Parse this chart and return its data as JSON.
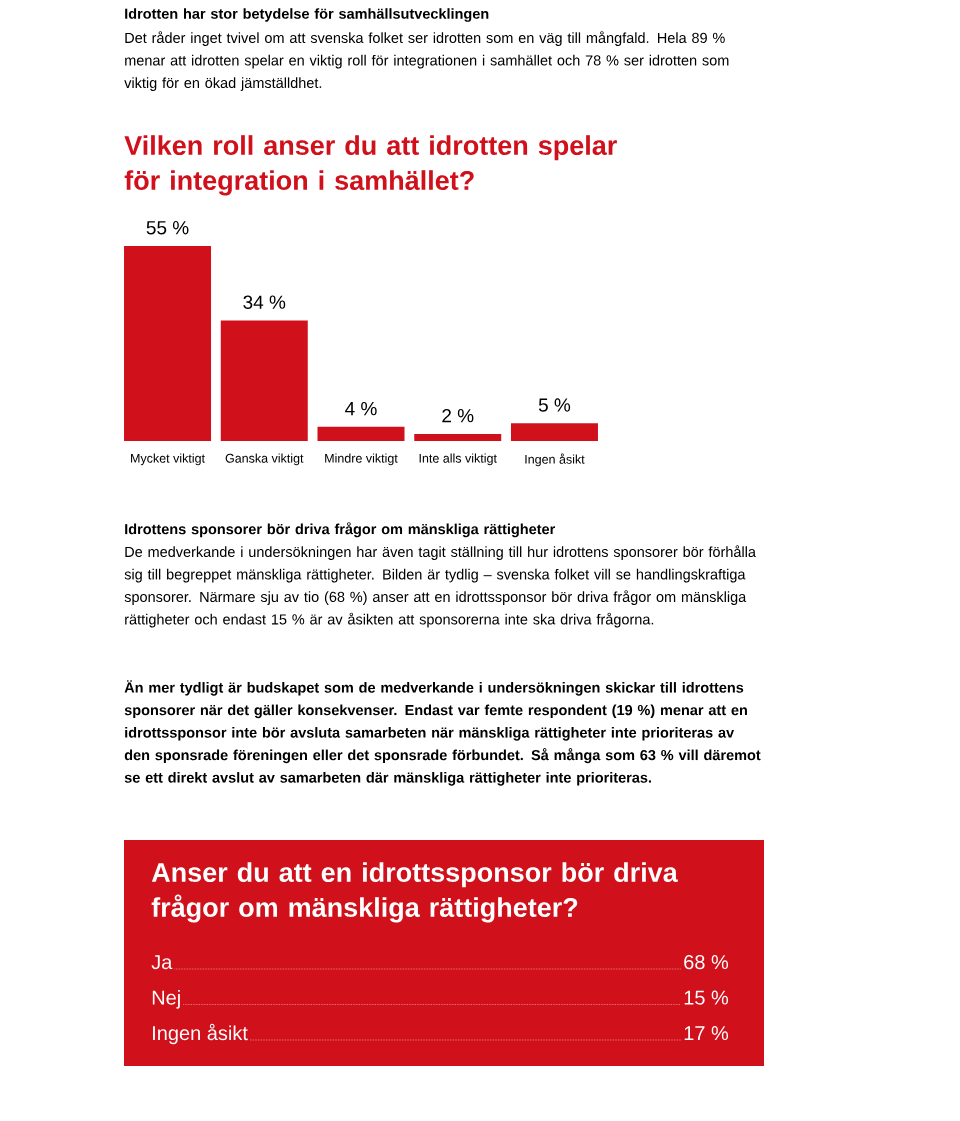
{
  "chart_data": [
    {
      "type": "bar",
      "title": "Vilken roll anser du att idrotten spelar för integration i samhället?",
      "categories": [
        "Mycket viktigt",
        "Ganska viktigt",
        "Mindre viktigt",
        "Inte alls viktigt",
        "Ingen åsikt"
      ],
      "values": [
        55,
        34,
        4,
        2,
        5
      ],
      "value_labels": [
        "55 %",
        "34 %",
        "4 %",
        "2 %",
        "5 %"
      ],
      "color": "#d0111b",
      "annotations": [
        "Idrotten har stor betydelse för samhällsutvecklingen",
        "Det råder inget tvivel om att svenska folket ser idrotten som en väg till mångfald. Hela 89 % menar att idrotten spelar en viktig roll för integrationen i samhället och 78 % ser idrotten som viktig för en ökad jämställdhet.",
        "Idrottens sponsorer bör driva frågor om mänskliga rättigheter",
        "De medverkande i undersökningen har även tagit ställning till hur idrottens sponsorer bör förhålla sig till begreppet mänskliga rättigheter. Bilden är tydlig – svenska folket vill se handlingskraftiga sponsorer. Närmare sju av tio (68 %) anser att en idrottssponsor bör driva frågor om mänskliga rättigheter och endast 15 % är av åsikten att sponsorerna inte ska driva frågorna.",
        "Än mer tydligt är budskapet som de medverkande i undersökningen skickar till idrottens sponsorer när det gäller konsekvenser. Endast var femte respondent (19 %) menar att en idrottssponsor inte bör avsluta samarbeten när mänskliga rättigheter inte prioriteras av den sponsrade föreningen eller det sponsrade förbundet. Så många som 63 % vill däremot se ett direkt avslut av samarbeten där mänskliga rättigheter inte prioriteras."
      ]
    },
    {
      "type": "other",
      "title": "Anser du att en idrottssponsor bör driva frågor om mänskliga rättigheter?",
      "categories": [
        "Ja",
        "Nej",
        "Ingen åsikt"
      ],
      "values": [
        68,
        15,
        17
      ],
      "value_labels": [
        "68 %",
        "15 %",
        "17 %"
      ],
      "color": "#d0111b"
    }
  ]
}
